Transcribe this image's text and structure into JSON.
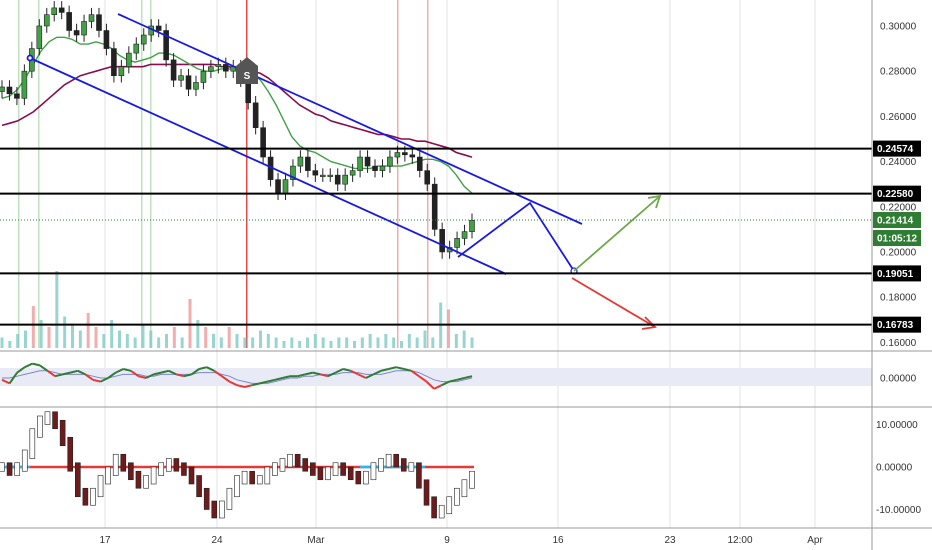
{
  "chart_data": {
    "type": "candlestick",
    "price_axis": {
      "ticks": [
        "0.30000",
        "0.28000",
        "0.26000",
        "0.24000",
        "0.22000",
        "0.20000",
        "0.18000",
        "0.16000"
      ],
      "tick_values": [
        0.3,
        0.28,
        0.26,
        0.24,
        0.22,
        0.2,
        0.18,
        0.16
      ],
      "range": [
        0.1575,
        0.3115
      ]
    },
    "levels": [
      {
        "value": 0.24574,
        "label": "0.24574"
      },
      {
        "value": 0.2258,
        "label": "0.22580"
      },
      {
        "value": 0.19051,
        "label": "0.19051"
      },
      {
        "value": 0.16783,
        "label": "0.16783"
      }
    ],
    "last_price": {
      "value": 0.21414,
      "label": "0.21414",
      "countdown": "01:05:12"
    },
    "signal_marker": "S",
    "price_series": [
      0.273,
      0.27,
      0.268,
      0.28,
      0.29,
      0.3,
      0.305,
      0.308,
      0.306,
      0.298,
      0.296,
      0.302,
      0.305,
      0.298,
      0.29,
      0.278,
      0.282,
      0.288,
      0.292,
      0.296,
      0.3,
      0.298,
      0.285,
      0.276,
      0.278,
      0.272,
      0.275,
      0.28,
      0.282,
      0.283,
      0.28,
      0.282,
      0.276,
      0.266,
      0.255,
      0.242,
      0.232,
      0.226,
      0.232,
      0.238,
      0.242,
      0.236,
      0.234,
      0.234,
      0.234,
      0.23,
      0.234,
      0.236,
      0.242,
      0.238,
      0.236,
      0.238,
      0.242,
      0.244,
      0.243,
      0.242,
      0.236,
      0.23,
      0.21,
      0.2,
      0.202,
      0.206,
      0.209,
      0.214
    ],
    "ma_fast": [
      0.268,
      0.269,
      0.272,
      0.277,
      0.283,
      0.289,
      0.293,
      0.295,
      0.295,
      0.294,
      0.292,
      0.292,
      0.293,
      0.292,
      0.29,
      0.287,
      0.285,
      0.284,
      0.285,
      0.286,
      0.288,
      0.288,
      0.287,
      0.285,
      0.283,
      0.281,
      0.28,
      0.28,
      0.281,
      0.281,
      0.281,
      0.281,
      0.279,
      0.276,
      0.271,
      0.265,
      0.258,
      0.251,
      0.247,
      0.245,
      0.244,
      0.242,
      0.24,
      0.239,
      0.238,
      0.237,
      0.237,
      0.237,
      0.238,
      0.238,
      0.238,
      0.238,
      0.239,
      0.24,
      0.241,
      0.241,
      0.24,
      0.238,
      0.234,
      0.229,
      0.226
    ],
    "ma_slow": [
      0.256,
      0.257,
      0.258,
      0.26,
      0.262,
      0.265,
      0.268,
      0.271,
      0.274,
      0.276,
      0.278,
      0.279,
      0.28,
      0.281,
      0.282,
      0.282,
      0.282,
      0.282,
      0.282,
      0.283,
      0.283,
      0.283,
      0.283,
      0.283,
      0.283,
      0.283,
      0.283,
      0.283,
      0.282,
      0.282,
      0.281,
      0.281,
      0.28,
      0.279,
      0.277,
      0.274,
      0.271,
      0.268,
      0.265,
      0.263,
      0.261,
      0.26,
      0.258,
      0.257,
      0.256,
      0.255,
      0.254,
      0.253,
      0.252,
      0.252,
      0.251,
      0.25,
      0.25,
      0.249,
      0.249,
      0.248,
      0.247,
      0.246,
      0.244,
      0.243,
      0.242
    ],
    "volumes": [
      0.3,
      0.2,
      0.4,
      0.5,
      1.2,
      0.8,
      0.6,
      2.2,
      0.9,
      0.7,
      0.5,
      1.0,
      0.6,
      0.4,
      0.8,
      0.5,
      0.4,
      0.3,
      0.7,
      0.5,
      0.3,
      0.4,
      0.6,
      0.3,
      1.4,
      0.8,
      0.6,
      0.4,
      0.3,
      0.6,
      0.4,
      0.3,
      0.3,
      0.5,
      0.4,
      0.3,
      0.2,
      0.3,
      0.2,
      0.3,
      0.4,
      0.3,
      0.2,
      0.3,
      0.3,
      0.2,
      0.3,
      0.4,
      0.3,
      0.4,
      0.3,
      0.2,
      0.4,
      0.3,
      0.5,
      0.3,
      1.3,
      1.1,
      0.4,
      0.5,
      0.3
    ],
    "oscillator_1": {
      "ticks": [
        "0.00000"
      ],
      "values": [
        -0.1,
        -0.3,
        0.3,
        0.6,
        0.8,
        0.7,
        0.4,
        0.1,
        0.2,
        0.3,
        0.4,
        0.2,
        -0.1,
        -0.2,
        0.0,
        0.3,
        0.5,
        0.4,
        0.1,
        0.0,
        0.2,
        0.3,
        0.4,
        0.2,
        0.1,
        0.2,
        0.5,
        0.6,
        0.4,
        0.1,
        -0.2,
        -0.4,
        -0.5,
        -0.4,
        -0.3,
        -0.2,
        -0.1,
        0.0,
        0.1,
        0.1,
        0.2,
        0.3,
        0.2,
        0.1,
        0.3,
        0.5,
        0.4,
        0.2,
        0.0,
        0.2,
        0.4,
        0.5,
        0.6,
        0.5,
        0.4,
        0.1,
        -0.2,
        -0.6,
        -0.4,
        -0.2,
        -0.1,
        0.0,
        0.1
      ],
      "signal": [
        0.0,
        0.0,
        0.1,
        0.2,
        0.3,
        0.4,
        0.4,
        0.3,
        0.2,
        0.2,
        0.2,
        0.2,
        0.1,
        0.0,
        0.0,
        0.1,
        0.2,
        0.2,
        0.2,
        0.1,
        0.1,
        0.2,
        0.2,
        0.2,
        0.2,
        0.2,
        0.3,
        0.3,
        0.3,
        0.2,
        0.1,
        -0.1,
        -0.2,
        -0.3,
        -0.3,
        -0.3,
        -0.2,
        -0.1,
        0.0,
        0.0,
        0.1,
        0.1,
        0.2,
        0.2,
        0.2,
        0.3,
        0.3,
        0.3,
        0.2,
        0.2,
        0.2,
        0.3,
        0.4,
        0.4,
        0.4,
        0.3,
        0.1,
        -0.1,
        -0.2,
        -0.2,
        -0.2,
        -0.1,
        0.0
      ]
    },
    "oscillator_2": {
      "ticks": [
        "10.00000",
        "0.00000",
        "-10.00000"
      ],
      "tick_values": [
        10,
        0,
        -10
      ],
      "values": [
        0,
        -1,
        0,
        3,
        8,
        11,
        12,
        10,
        6,
        0,
        -6,
        -8,
        -6,
        -3,
        -1,
        2,
        0,
        -2,
        -4,
        -3,
        -1,
        0,
        1,
        0,
        -1,
        -3,
        -6,
        -9,
        -11,
        -9,
        -6,
        -3,
        -2,
        -3,
        -3,
        -1,
        0,
        1,
        2,
        1,
        0,
        -1,
        -2,
        -1,
        0,
        -1,
        -2,
        -3,
        -2,
        0,
        1,
        2,
        1,
        0,
        0,
        -4,
        -8,
        -11,
        -10,
        -8,
        -6,
        -4,
        -2
      ]
    },
    "time_axis": [
      "17",
      "24",
      "Mar",
      "9",
      "16",
      "23",
      "12:00",
      "Apr"
    ]
  }
}
